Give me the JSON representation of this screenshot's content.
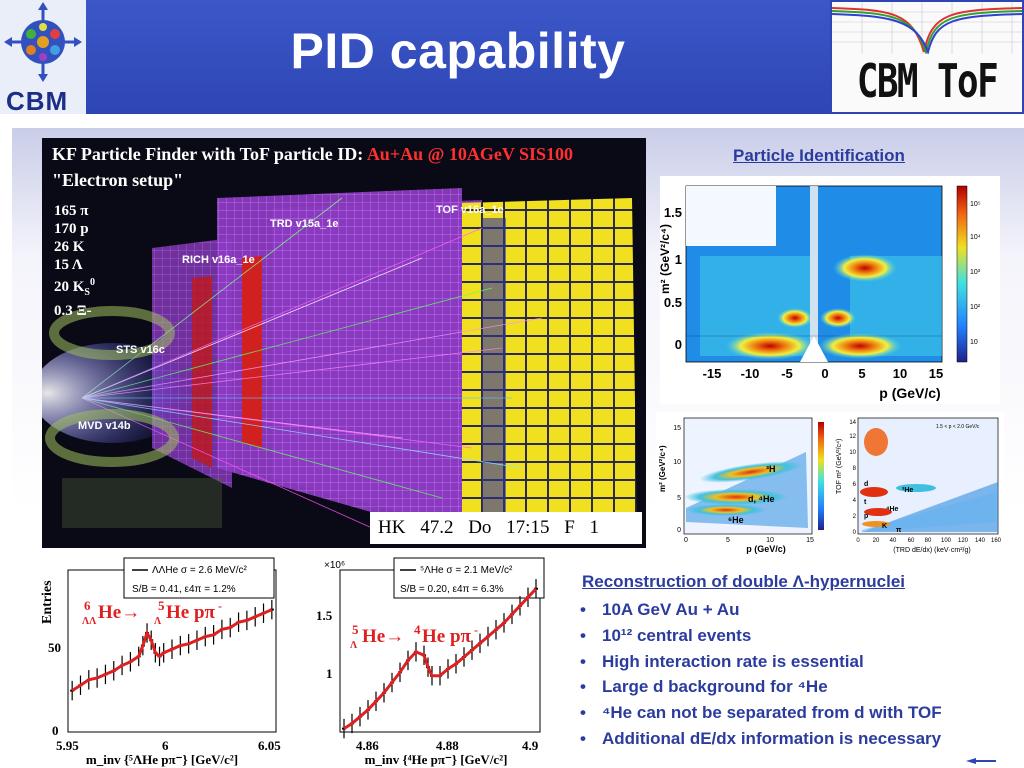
{
  "slide": {
    "title": "PID capability",
    "logo_left_text": "CBM",
    "logo_right_text": "CBM ToF"
  },
  "event_display": {
    "title_line1_prefix": "KF Particle Finder with ToF particle ID: ",
    "title_line1_highlight": "Au+Au @ 10AGeV SIS100",
    "title_line2": "\"Electron setup\"",
    "particles": [
      "165 π",
      "170 p",
      "26 K",
      "15 Λ",
      "20 K",
      "0.3 Ξ-"
    ],
    "particle_super": "0",
    "particle_sub": "S",
    "detectors": {
      "trd": "TRD v15a_1e",
      "tof": "TOF v16a_1e",
      "rich": "RICH v16a_1e",
      "sts": "STS v16c",
      "mvd": "MVD v14b"
    },
    "stamp": "HK 47.2 Do 17:15 F 1"
  },
  "pid_plot": {
    "heading": "Particle Identification",
    "xlabel": "p (GeV/c)",
    "ylabel": "m² (GeV²/c⁴)",
    "xticks": [
      "-15",
      "-10",
      "-5",
      "0",
      "5",
      "10",
      "15"
    ],
    "yticks": [
      "0",
      "0.5",
      "1",
      "1.5"
    ],
    "zticks": [
      "10",
      "10²",
      "10³",
      "10⁴",
      "10⁵"
    ]
  },
  "small_plot_left": {
    "ylabel": "m² (GeV²/c⁴)",
    "xlabel": "p (GeV/c)",
    "yticks": [
      "0",
      "5",
      "10",
      "15"
    ],
    "xticks": [
      "0",
      "5",
      "10",
      "15"
    ],
    "labels": [
      "³H",
      "d, ⁴He",
      "⁶He"
    ]
  },
  "small_plot_right": {
    "ylabel": "TOF m² (GeV²/c⁴)",
    "xlabel": "(TRD dE/dx) (keV·cm²/g)",
    "xticks": [
      "0",
      "20",
      "40",
      "60",
      "80",
      "100",
      "120",
      "140",
      "160"
    ],
    "yticks": [
      "0",
      "2",
      "4",
      "6",
      "8",
      "10",
      "12",
      "14"
    ],
    "annotation": "1.5 < p < 2.0 GeV/c",
    "labels": [
      "d",
      "³He",
      "⁴He",
      "t",
      "p",
      "K",
      "π"
    ]
  },
  "chart_data": [
    {
      "type": "line",
      "title": "ΛΛ He → Λ He pπ-",
      "reaction_main": "He→",
      "reaction_tail": "He pπ",
      "reaction_sup_left": "6",
      "reaction_sub_left": "ΛΛ",
      "reaction_sup_mid": "5",
      "reaction_sub_mid": "Λ",
      "reaction_minus": "-",
      "legend_line1": "ΛΛHe σ = 2.6 MeV/c²",
      "legend_line2": "S/B = 0.41, ε4π = 1.2%",
      "xlabel": "m_inv {⁵ΛHe pπ⁻} [GeV/c²]",
      "ylabel": "Entries",
      "xticks": [
        "5.95",
        "6",
        "6.05"
      ],
      "yticks": [
        "0",
        "50"
      ],
      "xlim": [
        5.95,
        6.05
      ],
      "ylim": [
        0,
        90
      ],
      "x": [
        5.952,
        5.956,
        5.96,
        5.964,
        5.968,
        5.972,
        5.976,
        5.98,
        5.984,
        5.986,
        5.988,
        5.99,
        5.992,
        5.994,
        5.996,
        6.0,
        6.004,
        6.008,
        6.012,
        6.016,
        6.02,
        6.024,
        6.028,
        6.032,
        6.036,
        6.04,
        6.044,
        6.048
      ],
      "values": [
        23,
        26,
        29,
        30,
        32,
        34,
        37,
        39,
        42,
        48,
        55,
        51,
        44,
        42,
        44,
        46,
        48,
        49,
        51,
        53,
        54,
        57,
        58,
        61,
        62,
        64,
        66,
        68
      ]
    },
    {
      "type": "line",
      "title": "Λ He → ⁴He pπ-",
      "reaction_main": "He→",
      "reaction_tail": "He pπ",
      "reaction_sup_left": "5",
      "reaction_sub_left": "Λ",
      "reaction_sup_mid": "4",
      "reaction_minus": "-",
      "legend_line1": "⁵ΛHe σ = 2.1 MeV/c²",
      "legend_line2": "S/B = 0.20, ε4π = 6.3%",
      "xlabel": "m_inv {⁴He pπ⁻} [GeV/c²]",
      "ylabel": "",
      "exponent": "×10⁶",
      "xticks": [
        "4.86",
        "4.88",
        "4.9"
      ],
      "yticks": [
        "1",
        "1.5"
      ],
      "xlim": [
        4.85,
        4.9
      ],
      "ylim": [
        0.75,
        1.7
      ],
      "x": [
        4.851,
        4.853,
        4.855,
        4.857,
        4.859,
        4.861,
        4.863,
        4.865,
        4.867,
        4.869,
        4.871,
        4.872,
        4.873,
        4.875,
        4.877,
        4.879,
        4.881,
        4.883,
        4.885,
        4.887,
        4.889,
        4.891,
        4.893,
        4.895,
        4.897,
        4.899
      ],
      "values": [
        0.77,
        0.8,
        0.84,
        0.88,
        0.93,
        0.98,
        1.04,
        1.1,
        1.17,
        1.22,
        1.2,
        1.13,
        1.08,
        1.08,
        1.12,
        1.15,
        1.19,
        1.23,
        1.27,
        1.31,
        1.35,
        1.39,
        1.44,
        1.49,
        1.54,
        1.59
      ]
    }
  ],
  "reconstruction": {
    "heading": "Reconstruction of double Λ-hypernuclei",
    "bullets": [
      "10A GeV Au + Au",
      "10¹² central events",
      "High interaction rate is essential",
      "Large d background for ⁴He",
      "⁴He can not be separated from d with TOF",
      "Additional dE/dx information is necessary"
    ]
  },
  "colors": {
    "title_band": "#2e46b4",
    "bullet_text": "#2b3c9e",
    "fit_line": "#e02020"
  }
}
